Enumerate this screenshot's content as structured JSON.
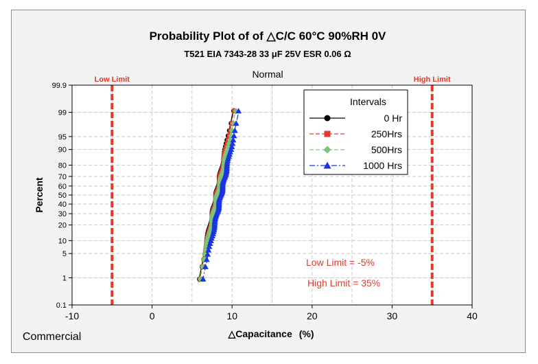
{
  "chart_data": {
    "type": "scatter",
    "title": "Probability Plot of of △C/C 60°C 90%RH 0V",
    "subtitle": "T521 EIA 7343-28 33 μF 25V ESR 0.06 Ω",
    "distribution_label": "Normal",
    "xlabel": "△Capacitance",
    "xlabel_unit": "(%)",
    "ylabel": "Percent",
    "xlim": [
      -10,
      40
    ],
    "x_ticks": [
      -10,
      0,
      10,
      20,
      30,
      40
    ],
    "y_scale": "normal-probability",
    "ylim": [
      0.1,
      99.9
    ],
    "y_ticks": [
      0.1,
      1,
      5,
      10,
      20,
      30,
      40,
      50,
      60,
      70,
      80,
      90,
      95,
      99,
      99.9
    ],
    "grid": true,
    "legend_title": "Intervals",
    "legend_position": "top-right",
    "series": [
      {
        "name": "0 Hr",
        "color": "#000000",
        "marker": "circle",
        "line_style": "solid",
        "mean": 8.0,
        "sd": 0.9,
        "n": 77,
        "xs": [
          5.8,
          10.2
        ]
      },
      {
        "name": "250Hrs",
        "color": "#e8382b",
        "marker": "square",
        "line_style": "dashed",
        "mean": 8.1,
        "sd": 0.9,
        "n": 77,
        "xs": [
          5.9,
          10.3
        ]
      },
      {
        "name": "500Hrs",
        "color": "#7cc576",
        "marker": "diamond",
        "line_style": "dashed",
        "mean": 8.2,
        "sd": 0.95,
        "n": 77,
        "xs": [
          5.9,
          10.4
        ]
      },
      {
        "name": "1000 Hrs",
        "color": "#1a33e6",
        "marker": "triangle",
        "line_style": "dashdot",
        "mean": 8.6,
        "sd": 0.95,
        "n": 77,
        "xs": [
          6.3,
          10.8
        ]
      }
    ],
    "reference_lines": [
      {
        "label": "Low Limit",
        "x": -5,
        "color": "#e8382b"
      },
      {
        "label": "High Limit",
        "x": 35,
        "color": "#e8382b"
      }
    ],
    "annotations": [
      "Low Limit = -5%",
      "High Limit = 35%"
    ]
  },
  "footer": {
    "label": "Commercial"
  }
}
